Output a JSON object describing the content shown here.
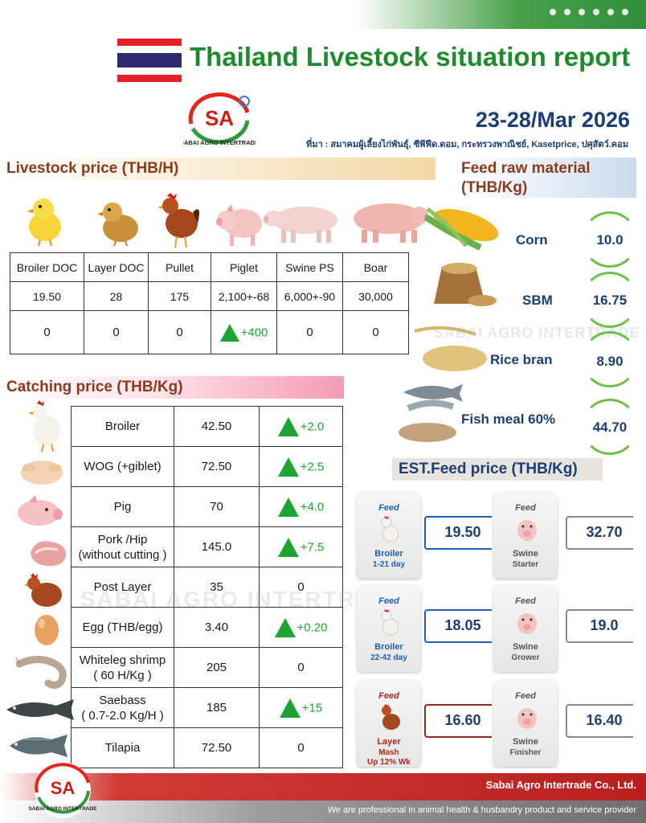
{
  "header": {
    "title": "Thailand Livestock situation report",
    "date": "23-28/Mar 2026",
    "source": "ที่มา  : สมาคมผู้เลี้ยงไก่พันธุ์, ซีพีฟีด.ดอม, กระทรวงพาณิชย์, Kasetprice, ปศุสัตว์.คอม",
    "logo_text": "SABAI AGRO INTERTRADE",
    "logo_mark": "SA"
  },
  "livestock": {
    "heading": "Livestock price (THB/H)",
    "headers": [
      "Broiler DOC",
      "Layer DOC",
      "Pullet",
      "Piglet",
      "Swine PS",
      "Boar"
    ],
    "prices": [
      "19.50",
      "28",
      "175",
      "2,100+-68",
      "6,000+-90",
      "30,000"
    ],
    "changes": [
      {
        "value": "0",
        "dir": "none"
      },
      {
        "value": "0",
        "dir": "none"
      },
      {
        "value": "0",
        "dir": "none"
      },
      {
        "value": "+400",
        "dir": "up"
      },
      {
        "value": "0",
        "dir": "none"
      },
      {
        "value": "0",
        "dir": "none"
      }
    ]
  },
  "catching": {
    "heading": "Catching price (THB/Kg)",
    "rows": [
      {
        "name": "Broiler",
        "name2": "",
        "price": "42.50",
        "change": "+2.0",
        "dir": "up"
      },
      {
        "name": "WOG (+giblet)",
        "name2": "",
        "price": "72.50",
        "change": "+2.5",
        "dir": "up"
      },
      {
        "name": "Pig",
        "name2": "",
        "price": "70",
        "change": "+4.0",
        "dir": "up"
      },
      {
        "name": "Pork /Hip",
        "name2": "(without cutting )",
        "price": "145.0",
        "change": "+7.5",
        "dir": "up"
      },
      {
        "name": "Post Layer",
        "name2": "",
        "price": "35",
        "change": "0",
        "dir": "none"
      },
      {
        "name": "Egg (THB/egg)",
        "name2": "",
        "price": "3.40",
        "change": "+0.20",
        "dir": "up"
      },
      {
        "name": "Whiteleg shrimp",
        "name2": "( 60 H/Kg )",
        "price": "205",
        "change": "0",
        "dir": "none"
      },
      {
        "name": "Saebass",
        "name2": "( 0.7-2.0 Kg/H )",
        "price": "185",
        "change": "+15",
        "dir": "up"
      },
      {
        "name": "Tilapia",
        "name2": "",
        "price": "72.50",
        "change": "0",
        "dir": "none"
      }
    ]
  },
  "feed_raw": {
    "heading_line1": "Feed raw material",
    "heading_line2": "(THB/Kg)",
    "items": [
      {
        "name": "Corn",
        "value": "10.0"
      },
      {
        "name": "SBM",
        "value": "16.75"
      },
      {
        "name": "Rice bran",
        "value": "8.90"
      },
      {
        "name": "Fish meal 60%",
        "value": "44.70"
      }
    ]
  },
  "est_feed": {
    "heading": "EST.Feed price (THB/Kg)",
    "bag_word": "Feed",
    "items": [
      {
        "label1": "Broiler",
        "label2": "1-21 day",
        "value": "19.50",
        "color": "#1f5fb8",
        "accent": "#1f5fb8"
      },
      {
        "label1": "Swine",
        "label2": "Starter",
        "value": "32.70",
        "color": "#555555",
        "accent": "#8a8a8a"
      },
      {
        "label1": "Broiler",
        "label2": "22-42 day",
        "value": "18.05",
        "color": "#1f5fb8",
        "accent": "#1f5fb8"
      },
      {
        "label1": "Swine",
        "label2": "Grower",
        "value": "19.0",
        "color": "#555555",
        "accent": "#8a8a8a"
      },
      {
        "label1": "Layer",
        "label2": "Mash",
        "label3": "Up 12% Wk",
        "value": "16.60",
        "color": "#b3261e",
        "accent": "#8b2a22"
      },
      {
        "label1": "Swine",
        "label2": "Finisher",
        "value": "16.40",
        "color": "#555555",
        "accent": "#8a8a8a"
      }
    ]
  },
  "footer": {
    "company": "Sabai Agro Intertrade Co., Ltd.",
    "tagline": "We are professional in animal health & husbandry product and service provider"
  },
  "colors": {
    "title_green": "#1f8a2e",
    "navy": "#1b3f73",
    "brown": "#8b3a1d",
    "up_green": "#1ea531",
    "footer_red": "#b9201f"
  }
}
